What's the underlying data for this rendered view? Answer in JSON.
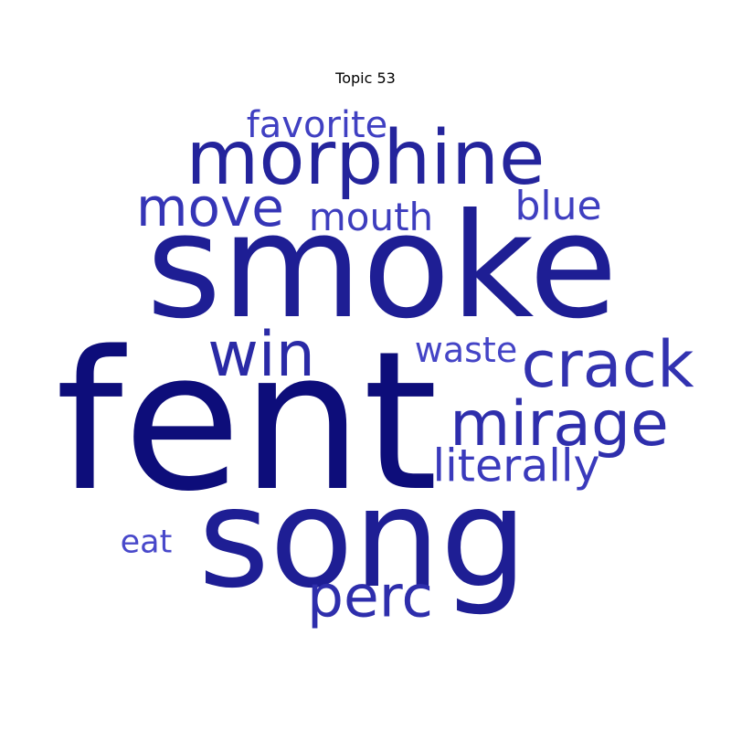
{
  "title": "Topic 53",
  "words": {
    "fent": {
      "text": "fent",
      "color": "#0d0d7a"
    },
    "smoke": {
      "text": "smoke",
      "color": "#1e1e94"
    },
    "song": {
      "text": "song",
      "color": "#1e1e94"
    },
    "morphine": {
      "text": "morphine",
      "color": "#24249c"
    },
    "mirage": {
      "text": "mirage",
      "color": "#2e2eac"
    },
    "crack": {
      "text": "crack",
      "color": "#3232b0"
    },
    "win": {
      "text": "win",
      "color": "#2a2aa6"
    },
    "perc": {
      "text": "perc",
      "color": "#2e2eac"
    },
    "move": {
      "text": "move",
      "color": "#3535b6"
    },
    "literally": {
      "text": "literally",
      "color": "#3a3abc"
    },
    "blue": {
      "text": "blue",
      "color": "#3f3fc0"
    },
    "mouth": {
      "text": "mouth",
      "color": "#3d3dbe"
    },
    "favorite": {
      "text": "favorite",
      "color": "#4040c2"
    },
    "waste": {
      "text": "waste",
      "color": "#4444c6"
    },
    "eat": {
      "text": "eat",
      "color": "#4848ca"
    }
  }
}
